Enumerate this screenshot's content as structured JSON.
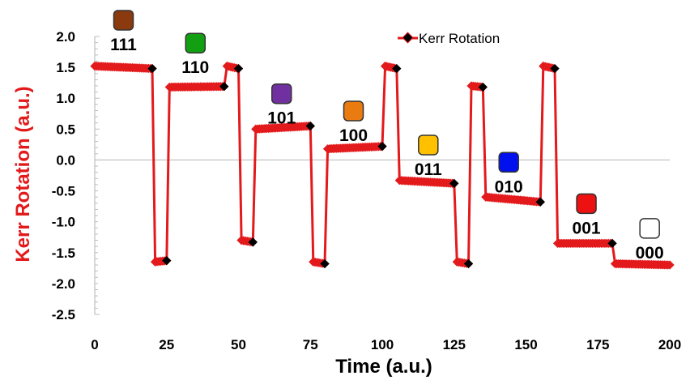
{
  "chart_data": {
    "type": "line",
    "xlabel": "Time (a.u.)",
    "ylabel": "Kerr Rotation (a.u.)",
    "xlim": [
      0,
      200
    ],
    "ylim": [
      -2.5,
      2.0
    ],
    "x_ticks": [
      "0",
      "25",
      "50",
      "75",
      "100",
      "125",
      "150",
      "175",
      "200"
    ],
    "y_ticks": [
      "2.0",
      "1.5",
      "1.0",
      "0.5",
      "0.0",
      "-0.5",
      "-1.0",
      "-1.5",
      "-2.0",
      "-2.5"
    ],
    "x_tick_values": [
      0,
      25,
      50,
      75,
      100,
      125,
      150,
      175,
      200
    ],
    "y_tick_values": [
      2.0,
      1.5,
      1.0,
      0.5,
      0.0,
      -0.5,
      -1.0,
      -1.5,
      -2.0,
      -2.5
    ],
    "legend": {
      "placement": "top-center"
    },
    "series": [
      {
        "name": "Kerr Rotation",
        "color": "#e31a1c",
        "marker_color": "#000000",
        "x": [
          0,
          20,
          21,
          25,
          26,
          45,
          46,
          50,
          51,
          55,
          56,
          75,
          76,
          80,
          81,
          100,
          101,
          105,
          106,
          125,
          126,
          130,
          131,
          135,
          136,
          155,
          156,
          160,
          161,
          180,
          181,
          200
        ],
        "y": [
          1.52,
          1.48,
          -1.65,
          -1.63,
          1.18,
          1.19,
          1.52,
          1.48,
          -1.3,
          -1.33,
          0.5,
          0.55,
          -1.65,
          -1.68,
          0.18,
          0.22,
          1.52,
          1.48,
          -0.33,
          -0.38,
          -1.65,
          -1.68,
          1.2,
          1.18,
          -0.6,
          -0.68,
          1.52,
          1.48,
          -1.35,
          -1.35,
          -1.68,
          -1.7
        ]
      }
    ],
    "state_labels": [
      {
        "text": "111",
        "x": 10,
        "y_top": 2.42,
        "color": "#8b3a0f"
      },
      {
        "text": "110",
        "x": 35,
        "y_top": 2.05,
        "color": "#12a012"
      },
      {
        "text": "101",
        "x": 65,
        "y_top": 1.23,
        "color": "#7030a0"
      },
      {
        "text": "100",
        "x": 90,
        "y_top": 0.95,
        "color": "#e97b10"
      },
      {
        "text": "011",
        "x": 116,
        "y_top": 0.4,
        "color": "#ffc000"
      },
      {
        "text": "010",
        "x": 144,
        "y_top": 0.12,
        "color": "#0010ee"
      },
      {
        "text": "001",
        "x": 171,
        "y_top": -0.55,
        "color": "#ee1111"
      },
      {
        "text": "000",
        "x": 193,
        "y_top": -0.95,
        "color": "#ffffff"
      }
    ]
  }
}
